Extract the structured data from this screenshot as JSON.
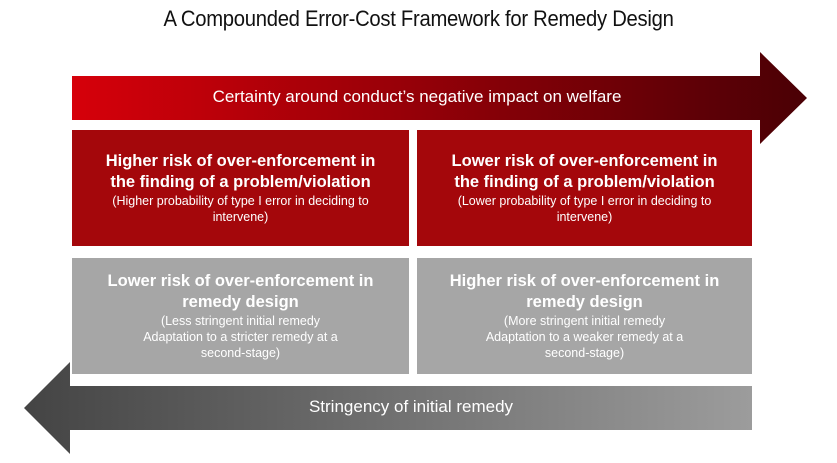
{
  "title": "A Compounded Error-Cost Framework for Remedy Design",
  "colors": {
    "red_start": "#d6000a",
    "red_end": "#4a0005",
    "box_red": "#a4070b",
    "box_grey": "#a6a6a6",
    "arrow_grey_start": "#444444",
    "arrow_grey_end": "#9c9c9c"
  },
  "top_arrow": {
    "label": "Certainty around conduct’s negative impact on welfare"
  },
  "bottom_arrow": {
    "label": "Stringency of initial remedy"
  },
  "boxes": {
    "top_left": {
      "head_lines": [
        "Higher risk of over-enforcement in",
        "the finding of a problem/violation"
      ],
      "sub_lines": [
        "(Higher probability of type I error in deciding to",
        "intervene)"
      ]
    },
    "top_right": {
      "head_lines": [
        "Lower risk of over-enforcement in",
        "the finding of a problem/violation"
      ],
      "sub_lines": [
        "(Lower probability of type I error in deciding to",
        "intervene)"
      ]
    },
    "bottom_left": {
      "head_lines": [
        "Lower risk of over-enforcement in",
        "remedy design"
      ],
      "sub_lines": [
        "(Less stringent initial remedy",
        "Adaptation to a stricter remedy at a",
        "second-stage)"
      ]
    },
    "bottom_right": {
      "head_lines": [
        "Higher risk of over-enforcement in",
        "remedy design"
      ],
      "sub_lines": [
        "(More stringent initial remedy",
        "Adaptation to a weaker remedy at a",
        "second-stage)"
      ]
    }
  }
}
